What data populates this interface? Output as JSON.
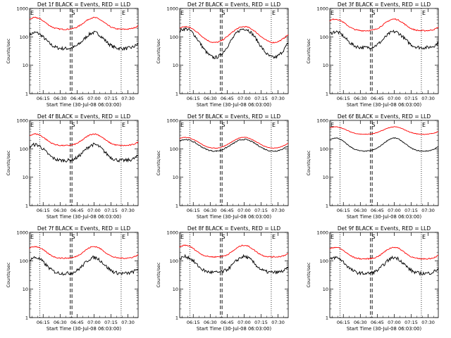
{
  "chart_data": [
    {
      "type": "line",
      "title": "Det 1f BLACK = Events, RED = LLD",
      "xlabel": "Start Time (30-Jul-08 06:03:00)",
      "ylabel": "Counts/sec",
      "yscale": "log",
      "ylim": [
        1,
        1000
      ],
      "yticks": [
        "1",
        "10",
        "100",
        "1000"
      ],
      "xticks": [
        "06:15",
        "06:30",
        "06:45",
        "07:00",
        "07:15",
        "07:30"
      ],
      "markers": [
        "E",
        "S",
        "E"
      ],
      "series": [
        {
          "name": "Events",
          "color": "#000000",
          "mean": 65,
          "amp": 1.9,
          "phase": 0.2,
          "noise": 0.12
        },
        {
          "name": "LLD",
          "color": "#ff0000",
          "mean": 270,
          "amp": 1.6,
          "phase": 0.2,
          "noise": 0.04
        }
      ]
    },
    {
      "type": "line",
      "title": "Det 2f BLACK = Events, RED = LLD",
      "xlabel": "Start Time (30-Jul-08 06:03:00)",
      "ylabel": "Counts/sec",
      "yscale": "log",
      "ylim": [
        1,
        1000
      ],
      "yticks": [
        "1",
        "10",
        "100",
        "1000"
      ],
      "xticks": [
        "06:15",
        "06:30",
        "06:45",
        "07:00",
        "07:15",
        "07:30"
      ],
      "markers": [
        "E",
        "S",
        "E"
      ],
      "series": [
        {
          "name": "Events",
          "color": "#000000",
          "mean": 60,
          "amp": 3.2,
          "phase": 0.0,
          "noise": 0.12
        },
        {
          "name": "LLD",
          "color": "#ff0000",
          "mean": 120,
          "amp": 1.9,
          "phase": 0.0,
          "noise": 0.04
        }
      ]
    },
    {
      "type": "line",
      "title": "Det 3f BLACK = Events, RED = LLD",
      "xlabel": "Start Time (30-Jul-08 06:03:00)",
      "ylabel": "Counts/sec",
      "yscale": "log",
      "ylim": [
        1,
        1000
      ],
      "yticks": [
        "1",
        "10",
        "100",
        "1000"
      ],
      "xticks": [
        "06:15",
        "06:30",
        "06:45",
        "07:00",
        "07:15",
        "07:30"
      ],
      "markers": [
        "E",
        "S",
        "E"
      ],
      "series": [
        {
          "name": "Events",
          "color": "#000000",
          "mean": 70,
          "amp": 1.9,
          "phase": 0.2,
          "noise": 0.12
        },
        {
          "name": "LLD",
          "color": "#ff0000",
          "mean": 240,
          "amp": 1.6,
          "phase": 0.2,
          "noise": 0.04
        }
      ]
    },
    {
      "type": "line",
      "title": "Det 4f BLACK = Events, RED = LLD",
      "xlabel": "Start Time (30-Jul-08 06:03:00)",
      "ylabel": "Counts/sec",
      "yscale": "log",
      "ylim": [
        1,
        1000
      ],
      "yticks": [
        "1",
        "10",
        "100",
        "1000"
      ],
      "xticks": [
        "06:15",
        "06:30",
        "06:45",
        "07:00",
        "07:15",
        "07:30"
      ],
      "markers": [
        "E",
        "S",
        "E"
      ],
      "series": [
        {
          "name": "Events",
          "color": "#000000",
          "mean": 65,
          "amp": 1.9,
          "phase": 0.2,
          "noise": 0.12
        },
        {
          "name": "LLD",
          "color": "#ff0000",
          "mean": 190,
          "amp": 1.6,
          "phase": 0.2,
          "noise": 0.04
        }
      ]
    },
    {
      "type": "line",
      "title": "Det 5f BLACK = Events, RED = LLD",
      "xlabel": "Start Time (30-Jul-08 06:03:00)",
      "ylabel": "Counts/sec",
      "yscale": "log",
      "ylim": [
        1,
        1000
      ],
      "yticks": [
        "1",
        "10",
        "100",
        "1000"
      ],
      "xticks": [
        "06:15",
        "06:30",
        "06:45",
        "07:00",
        "07:15",
        "07:30"
      ],
      "markers": [
        "E",
        "S",
        "E"
      ],
      "series": [
        {
          "name": "Events",
          "color": "#000000",
          "mean": 130,
          "amp": 1.6,
          "phase": 0.05,
          "noise": 0.04
        },
        {
          "name": "LLD",
          "color": "#ff0000",
          "mean": 160,
          "amp": 1.55,
          "phase": 0.05,
          "noise": 0.02
        }
      ]
    },
    {
      "type": "line",
      "title": "Det 6f BLACK = Events, RED = LLD",
      "xlabel": "Start Time (30-Jul-08 06:03:00)",
      "ylabel": "Counts/sec",
      "yscale": "log",
      "ylim": [
        1,
        1000
      ],
      "yticks": [
        "1",
        "10",
        "100",
        "1000"
      ],
      "xticks": [
        "06:15",
        "06:30",
        "06:45",
        "07:00",
        "07:15",
        "07:30"
      ],
      "markers": [
        "E",
        "S",
        "E"
      ],
      "series": [
        {
          "name": "Events",
          "color": "#000000",
          "mean": 130,
          "amp": 1.7,
          "phase": 0.15,
          "noise": 0.03
        },
        {
          "name": "LLD",
          "color": "#ff0000",
          "mean": 420,
          "amp": 1.35,
          "phase": 0.15,
          "noise": 0.02
        }
      ]
    },
    {
      "type": "line",
      "title": "Det 7f BLACK = Events, RED = LLD",
      "xlabel": "Start Time (30-Jul-08 06:03:00)",
      "ylabel": "Counts/sec",
      "yscale": "log",
      "ylim": [
        1,
        1000
      ],
      "yticks": [
        "1",
        "10",
        "100",
        "1000"
      ],
      "xticks": [
        "06:15",
        "06:30",
        "06:45",
        "07:00",
        "07:15",
        "07:30"
      ],
      "markers": [
        "E",
        "S",
        "E"
      ],
      "series": [
        {
          "name": "Events",
          "color": "#000000",
          "mean": 60,
          "amp": 1.9,
          "phase": 0.2,
          "noise": 0.12
        },
        {
          "name": "LLD",
          "color": "#ff0000",
          "mean": 180,
          "amp": 1.6,
          "phase": 0.2,
          "noise": 0.04
        }
      ]
    },
    {
      "type": "line",
      "title": "Det 8f BLACK = Events, RED = LLD",
      "xlabel": "Start Time (30-Jul-08 06:03:00)",
      "ylabel": "Counts/sec",
      "yscale": "log",
      "ylim": [
        1,
        1000
      ],
      "yticks": [
        "1",
        "10",
        "100",
        "1000"
      ],
      "xticks": [
        "06:15",
        "06:30",
        "06:45",
        "07:00",
        "07:15",
        "07:30"
      ],
      "markers": [
        "E",
        "S",
        "E"
      ],
      "series": [
        {
          "name": "Events",
          "color": "#000000",
          "mean": 65,
          "amp": 1.9,
          "phase": 0.2,
          "noise": 0.12
        },
        {
          "name": "LLD",
          "color": "#ff0000",
          "mean": 200,
          "amp": 1.6,
          "phase": 0.2,
          "noise": 0.04
        }
      ]
    },
    {
      "type": "line",
      "title": "Det 9f BLACK = Events, RED = LLD",
      "xlabel": "Start Time (30-Jul-08 06:03:00)",
      "ylabel": "Counts/sec",
      "yscale": "log",
      "ylim": [
        1,
        1000
      ],
      "yticks": [
        "1",
        "10",
        "100",
        "1000"
      ],
      "xticks": [
        "06:15",
        "06:30",
        "06:45",
        "07:00",
        "07:15",
        "07:30"
      ],
      "markers": [
        "E",
        "S",
        "E"
      ],
      "series": [
        {
          "name": "Events",
          "color": "#000000",
          "mean": 60,
          "amp": 1.9,
          "phase": 0.2,
          "noise": 0.12
        },
        {
          "name": "LLD",
          "color": "#ff0000",
          "mean": 170,
          "amp": 1.6,
          "phase": 0.2,
          "noise": 0.04
        }
      ]
    }
  ]
}
